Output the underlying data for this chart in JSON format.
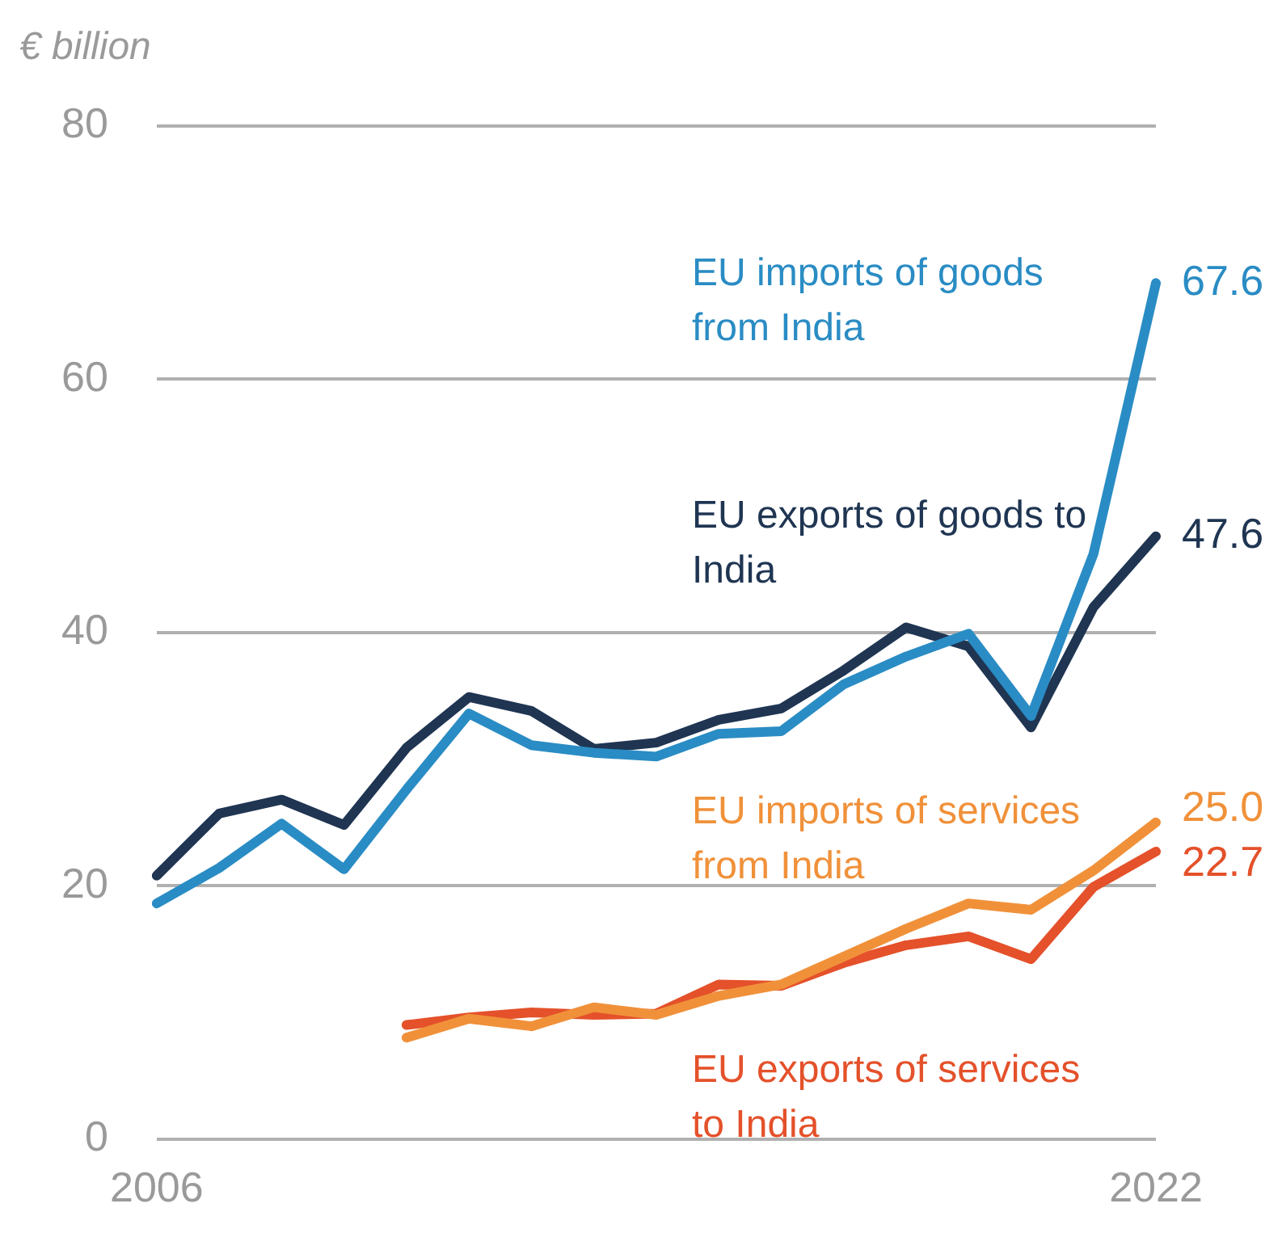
{
  "chart_data": {
    "type": "line",
    "ylabel": "€ billion",
    "categories": [
      "2006",
      null,
      null,
      null,
      null,
      null,
      null,
      null,
      null,
      null,
      null,
      null,
      null,
      null,
      null,
      null,
      "2022"
    ],
    "ylim": [
      0,
      80
    ],
    "yticks": [
      0,
      20,
      40,
      60,
      80
    ],
    "grid": "y",
    "legend": false,
    "marker": "none",
    "line_style": "solid",
    "series": [
      {
        "name": "EU imports of goods from India",
        "color": "#2a8cc4",
        "values": [
          18.6,
          21.4,
          24.9,
          21.3,
          27.6,
          33.6,
          31.1,
          30.5,
          30.2,
          32.0,
          32.2,
          35.9,
          38.1,
          39.9,
          33.4,
          46.2,
          67.6
        ],
        "value_labels": [
          null,
          null,
          null,
          null,
          null,
          null,
          null,
          null,
          null,
          null,
          null,
          null,
          null,
          null,
          null,
          null,
          "67.6"
        ]
      },
      {
        "name": "EU exports of goods to India",
        "color": "#1f3552",
        "values": [
          20.8,
          25.7,
          26.8,
          24.8,
          30.9,
          34.9,
          33.8,
          30.8,
          31.3,
          33.1,
          34.0,
          37.0,
          40.4,
          38.9,
          32.5,
          42.0,
          47.6
        ],
        "value_labels": [
          null,
          null,
          null,
          null,
          null,
          null,
          null,
          null,
          null,
          null,
          null,
          null,
          null,
          null,
          null,
          null,
          "47.6"
        ]
      },
      {
        "name": "EU imports of services from India",
        "color": "#f0913a",
        "values": [
          null,
          null,
          null,
          null,
          8.0,
          9.5,
          8.9,
          10.4,
          9.8,
          11.3,
          12.2,
          14.4,
          16.6,
          18.6,
          18.1,
          21.2,
          25.0
        ],
        "value_labels": [
          null,
          null,
          null,
          null,
          null,
          null,
          null,
          null,
          null,
          null,
          null,
          null,
          null,
          null,
          null,
          null,
          "25.0"
        ]
      },
      {
        "name": "EU exports of services to India",
        "color": "#e4512a",
        "values": [
          null,
          null,
          null,
          null,
          9.0,
          9.6,
          10.0,
          9.8,
          9.9,
          12.2,
          12.1,
          13.9,
          15.3,
          16.0,
          14.2,
          19.9,
          22.7
        ],
        "value_labels": [
          null,
          null,
          null,
          null,
          null,
          null,
          null,
          null,
          null,
          null,
          null,
          null,
          null,
          null,
          null,
          null,
          "22.7"
        ]
      }
    ]
  }
}
